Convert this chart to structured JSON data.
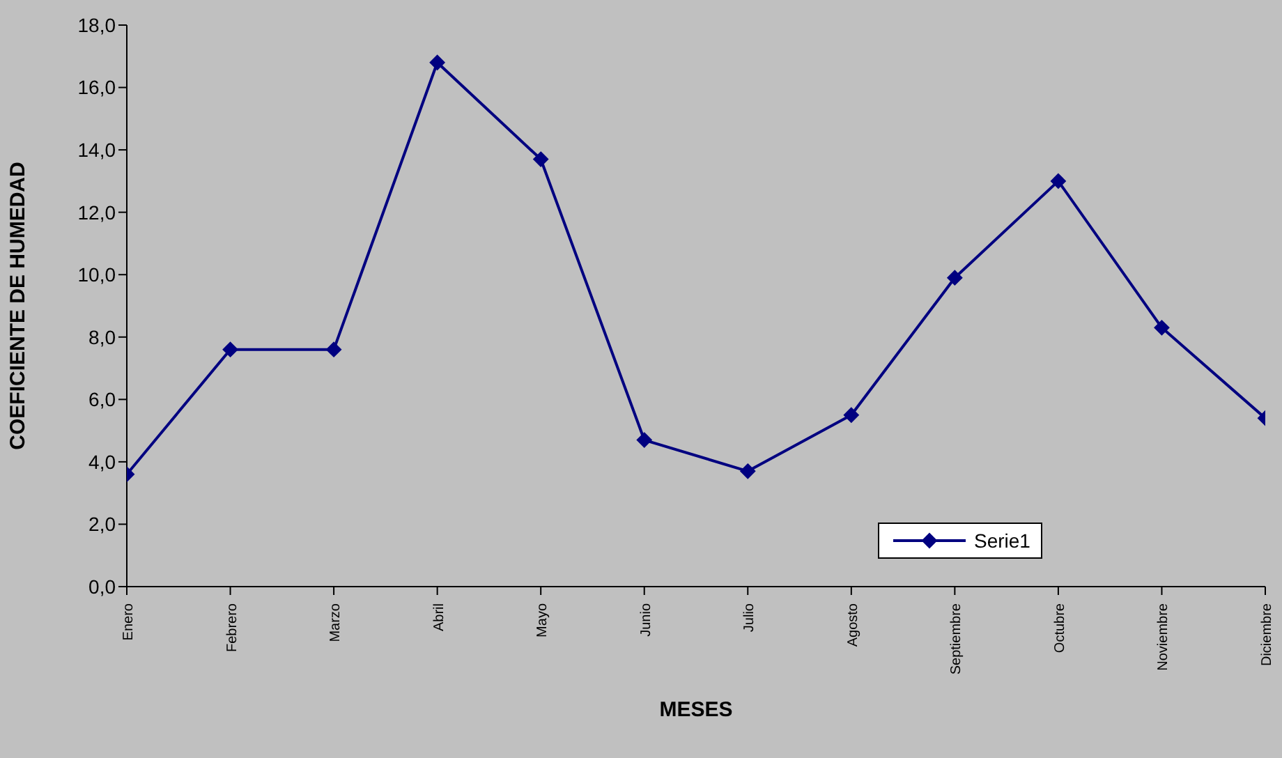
{
  "chart_data": {
    "type": "line",
    "xlabel": "MESES",
    "ylabel": "COEFICIENTE DE HUMEDAD",
    "categories": [
      "Enero",
      "Febrero",
      "Marzo",
      "Abril",
      "Mayo",
      "Junio",
      "Julio",
      "Agosto",
      "Septiembre",
      "Octubre",
      "Noviembre",
      "Diciembre"
    ],
    "series": [
      {
        "name": "Serie1",
        "color": "#000080",
        "values": [
          3.6,
          7.6,
          7.6,
          16.8,
          13.7,
          4.7,
          3.7,
          5.5,
          9.9,
          13.0,
          8.3,
          5.4
        ]
      }
    ],
    "ylim": [
      0,
      18
    ],
    "yticks": [
      {
        "value": 0,
        "label": "0,0"
      },
      {
        "value": 2,
        "label": "2,0"
      },
      {
        "value": 4,
        "label": "4,0"
      },
      {
        "value": 6,
        "label": "6,0"
      },
      {
        "value": 8,
        "label": "8,0"
      },
      {
        "value": 10,
        "label": "10,0"
      },
      {
        "value": 12,
        "label": "12,0"
      },
      {
        "value": 14,
        "label": "14,0"
      },
      {
        "value": 16,
        "label": "16,0"
      },
      {
        "value": 18,
        "label": "18,0"
      }
    ],
    "grid": false,
    "legend": "bottom right",
    "marker": "diamond",
    "line_style": "solid"
  }
}
